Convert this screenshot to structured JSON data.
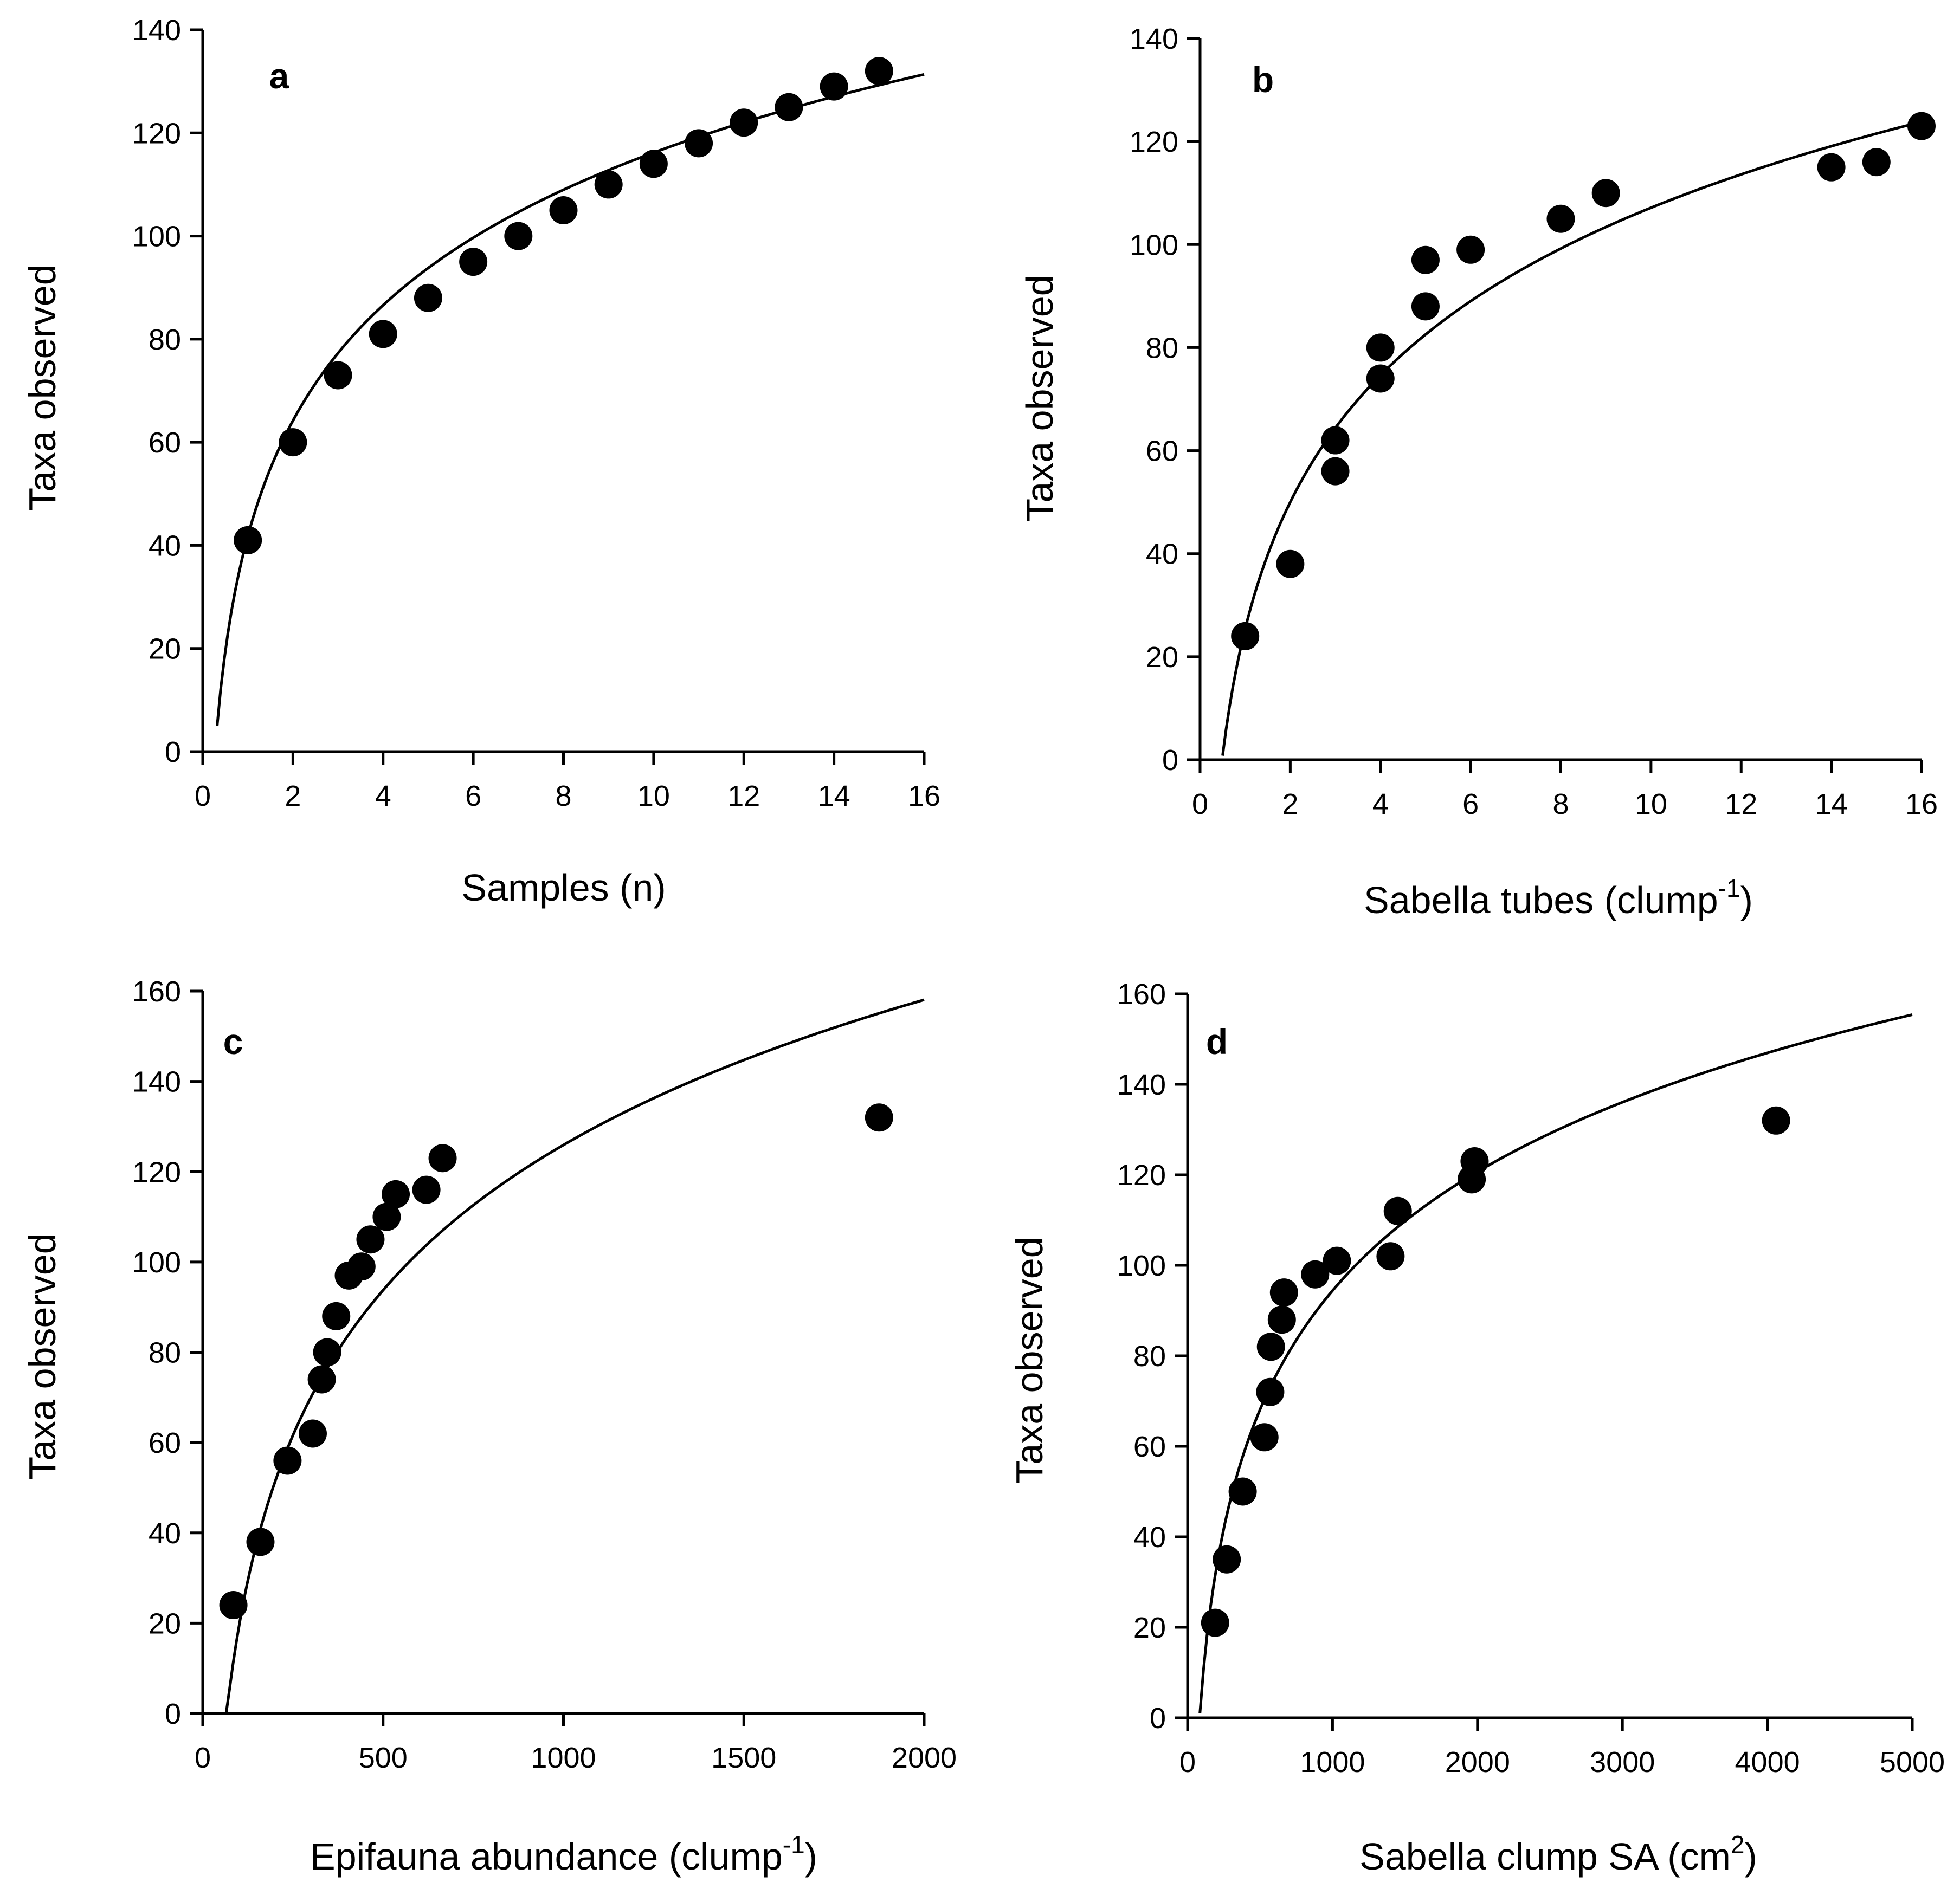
{
  "chart_data": [
    {
      "type": "scatter",
      "panel": "a",
      "xlabel": "Samples (n)",
      "ylabel": "Taxa observed",
      "xlim": [
        0,
        16
      ],
      "ylim": [
        0,
        140
      ],
      "xticks": [
        0,
        2,
        4,
        6,
        8,
        10,
        12,
        14,
        16
      ],
      "yticks": [
        0,
        20,
        40,
        60,
        80,
        100,
        120,
        140
      ],
      "points": {
        "x": [
          1,
          2,
          3,
          4,
          5,
          6,
          7,
          8,
          9,
          10,
          11,
          12,
          13,
          14,
          15
        ],
        "y": [
          41,
          60,
          73,
          81,
          88,
          95,
          100,
          105,
          110,
          114,
          118,
          122,
          125,
          129,
          132
        ]
      },
      "fit": {
        "model": "logarithmic",
        "a": 41.8,
        "b": 32.3,
        "x_start": 0.32,
        "x_end": 16
      }
    },
    {
      "type": "scatter",
      "panel": "b",
      "xlabel": "Sabella tubes (clump",
      "xlabel_sup": "-1",
      "xlabel_tail": ")",
      "ylabel": "Taxa observed",
      "xlim": [
        0,
        16
      ],
      "ylim": [
        0,
        140
      ],
      "xticks": [
        0,
        2,
        4,
        6,
        8,
        10,
        12,
        14,
        16
      ],
      "yticks": [
        0,
        20,
        40,
        60,
        80,
        100,
        120,
        140
      ],
      "points": {
        "x": [
          1,
          2,
          3,
          3,
          4,
          4,
          5,
          5,
          6,
          8,
          9,
          14,
          15,
          16
        ],
        "y": [
          24,
          38,
          56,
          62,
          74,
          80,
          88,
          97,
          99,
          105,
          110,
          115,
          116,
          123
        ]
      },
      "fit": {
        "model": "logarithmic",
        "a": 25.4,
        "b": 35.5,
        "x_start": 0.5,
        "x_end": 16
      }
    },
    {
      "type": "scatter",
      "panel": "c",
      "xlabel": "Epifauna abundance (clump",
      "xlabel_sup": "-1",
      "xlabel_tail": ")",
      "ylabel": "Taxa observed",
      "xlim": [
        0,
        2000
      ],
      "ylim": [
        0,
        160
      ],
      "xticks": [
        0,
        500,
        1000,
        1500,
        2000
      ],
      "yticks": [
        0,
        20,
        40,
        60,
        80,
        100,
        120,
        140,
        160
      ],
      "points": {
        "x": [
          85,
          160,
          235,
          305,
          330,
          345,
          370,
          405,
          440,
          465,
          510,
          535,
          620,
          665,
          1875
        ],
        "y": [
          24,
          38,
          56,
          62,
          74,
          80,
          88,
          97,
          99,
          105,
          110,
          115,
          116,
          123,
          132
        ]
      },
      "fit": {
        "model": "logarithmic",
        "a": -194.6,
        "b": 46.4,
        "x_start": 55,
        "x_end": 2000
      }
    },
    {
      "type": "scatter",
      "panel": "d",
      "xlabel": "Sabella clump SA (cm",
      "xlabel_sup": "2",
      "xlabel_tail": ")",
      "ylabel": "Taxa observed",
      "xlim": [
        0,
        5000
      ],
      "ylim": [
        0,
        160
      ],
      "xticks": [
        0,
        1000,
        2000,
        3000,
        4000,
        5000
      ],
      "yticks": [
        0,
        20,
        40,
        60,
        80,
        100,
        120,
        140,
        160
      ],
      "points": {
        "x": [
          190,
          270,
          380,
          530,
          570,
          575,
          650,
          665,
          880,
          1030,
          1400,
          1450,
          1960,
          1980,
          4060
        ],
        "y": [
          21,
          35,
          50,
          62,
          72,
          82,
          88,
          94,
          98,
          101,
          102,
          112,
          119,
          123,
          132
        ]
      },
      "fit": {
        "model": "logarithmic",
        "a": -167.4,
        "b": 37.9,
        "x_start": 85,
        "x_end": 5000
      }
    }
  ]
}
